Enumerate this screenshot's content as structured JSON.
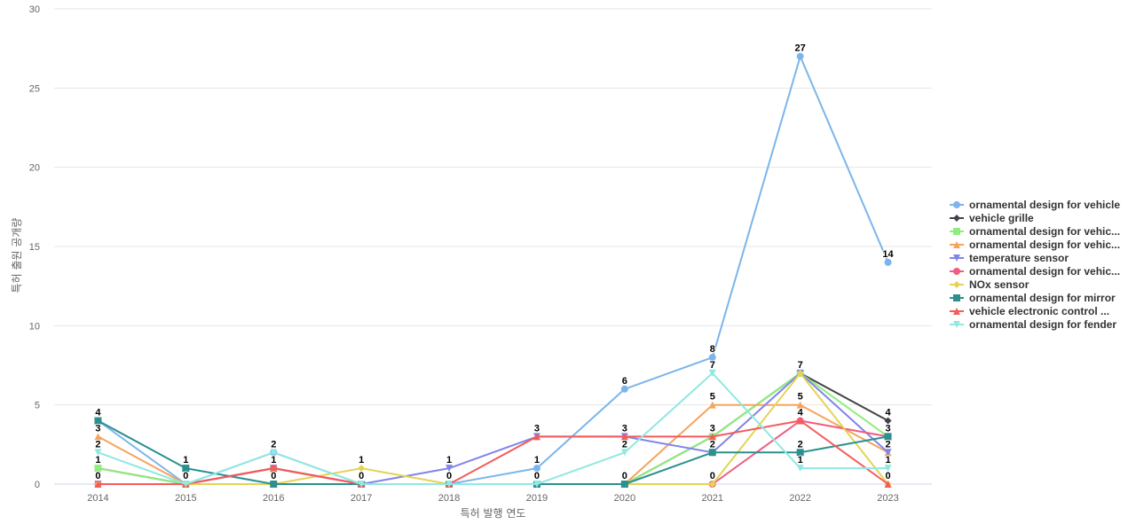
{
  "chart_data": {
    "type": "line",
    "xlabel": "특허 발행 연도",
    "ylabel": "특허 출원 공개량",
    "ylim": [
      0,
      30
    ],
    "yticks": [
      0,
      5,
      10,
      15,
      20,
      25,
      30
    ],
    "categories": [
      "2014",
      "2015",
      "2016",
      "2017",
      "2018",
      "2019",
      "2020",
      "2021",
      "2022",
      "2023"
    ],
    "grid": "horizontal",
    "legend_position": "right",
    "series": [
      {
        "name": "ornamental design for vehicle",
        "color": "#7cb5ec",
        "marker": "circle",
        "values": [
          4,
          0,
          2,
          0,
          0,
          1,
          6,
          8,
          27,
          14
        ]
      },
      {
        "name": "vehicle grille",
        "color": "#434348",
        "marker": "diamond",
        "values": [
          1,
          0,
          1,
          0,
          0,
          0,
          0,
          3,
          7,
          4
        ]
      },
      {
        "name": "ornamental design for vehic...",
        "color": "#90ed7d",
        "marker": "square",
        "values": [
          1,
          0,
          1,
          0,
          0,
          0,
          0,
          3,
          7,
          3
        ]
      },
      {
        "name": "ornamental design for vehic...",
        "color": "#f7a35c",
        "marker": "triangle",
        "values": [
          3,
          0,
          1,
          0,
          0,
          0,
          0,
          5,
          5,
          2
        ]
      },
      {
        "name": "temperature sensor",
        "color": "#8085e9",
        "marker": "triangle-down",
        "values": [
          0,
          0,
          1,
          0,
          1,
          3,
          3,
          2,
          7,
          2
        ]
      },
      {
        "name": "ornamental design for vehic...",
        "color": "#f15c80",
        "marker": "circle",
        "values": [
          0,
          0,
          1,
          0,
          0,
          0,
          0,
          0,
          4,
          3
        ]
      },
      {
        "name": "NOx sensor",
        "color": "#e4d354",
        "marker": "diamond",
        "values": [
          0,
          0,
          0,
          1,
          0,
          0,
          0,
          0,
          7,
          0
        ]
      },
      {
        "name": "ornamental design for mirror",
        "color": "#2b908f",
        "marker": "square",
        "values": [
          4,
          1,
          0,
          0,
          0,
          0,
          0,
          2,
          2,
          3
        ]
      },
      {
        "name": "vehicle electronic control ...",
        "color": "#f45b5b",
        "marker": "triangle",
        "values": [
          0,
          0,
          1,
          0,
          0,
          3,
          3,
          3,
          4,
          0
        ]
      },
      {
        "name": "ornamental design for fender",
        "color": "#91e8e1",
        "marker": "triangle-down",
        "values": [
          2,
          0,
          2,
          0,
          0,
          0,
          2,
          7,
          1,
          1
        ]
      }
    ]
  }
}
